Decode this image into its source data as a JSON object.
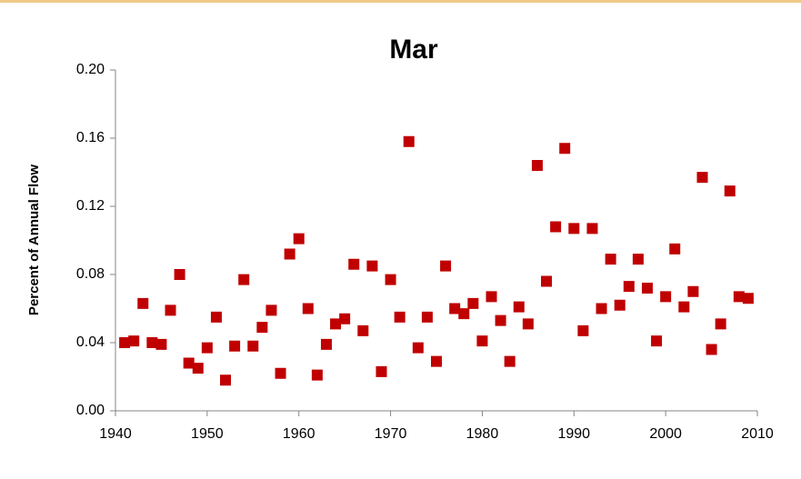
{
  "chart_data": {
    "type": "scatter",
    "title": "Mar",
    "y_label": "Percent of Annual Flow",
    "color": "#c00000",
    "x": [
      1941,
      1942,
      1943,
      1944,
      1945,
      1946,
      1947,
      1948,
      1949,
      1950,
      1951,
      1952,
      1953,
      1954,
      1955,
      1956,
      1957,
      1958,
      1959,
      1960,
      1961,
      1962,
      1963,
      1964,
      1965,
      1966,
      1967,
      1968,
      1969,
      1970,
      1971,
      1972,
      1973,
      1974,
      1975,
      1976,
      1977,
      1978,
      1979,
      1980,
      1981,
      1982,
      1983,
      1984,
      1985,
      1986,
      1987,
      1988,
      1989,
      1990,
      1991,
      1992,
      1993,
      1994,
      1995,
      1996,
      1997,
      1998,
      1999,
      2000,
      2001,
      2002,
      2003,
      2004,
      2005,
      2006,
      2007,
      2008,
      2009
    ],
    "values": [
      0.04,
      0.041,
      0.063,
      0.04,
      0.039,
      0.059,
      0.08,
      0.028,
      0.025,
      0.037,
      0.055,
      0.018,
      0.038,
      0.077,
      0.038,
      0.049,
      0.059,
      0.022,
      0.092,
      0.101,
      0.06,
      0.021,
      0.039,
      0.051,
      0.054,
      0.086,
      0.047,
      0.085,
      0.023,
      0.077,
      0.055,
      0.158,
      0.037,
      0.055,
      0.029,
      0.085,
      0.06,
      0.057,
      0.063,
      0.041,
      0.067,
      0.053,
      0.029,
      0.061,
      0.051,
      0.144,
      0.076,
      0.108,
      0.154,
      0.107,
      0.047,
      0.107,
      0.06,
      0.089,
      0.062,
      0.073,
      0.089,
      0.072,
      0.041,
      0.067,
      0.095,
      0.061,
      0.07,
      0.137,
      0.036,
      0.051,
      0.129,
      0.067,
      0.066
    ],
    "xlim": [
      1940,
      2010
    ],
    "xticks": [
      1940,
      1950,
      1960,
      1970,
      1980,
      1990,
      2000,
      2010
    ],
    "ylim": [
      0,
      0.2
    ],
    "yticks": [
      {
        "value": 0,
        "label": "0.00"
      },
      0.04,
      0.08,
      0.12,
      0.16,
      {
        "value": 0.2,
        "label": "0.20"
      }
    ]
  }
}
